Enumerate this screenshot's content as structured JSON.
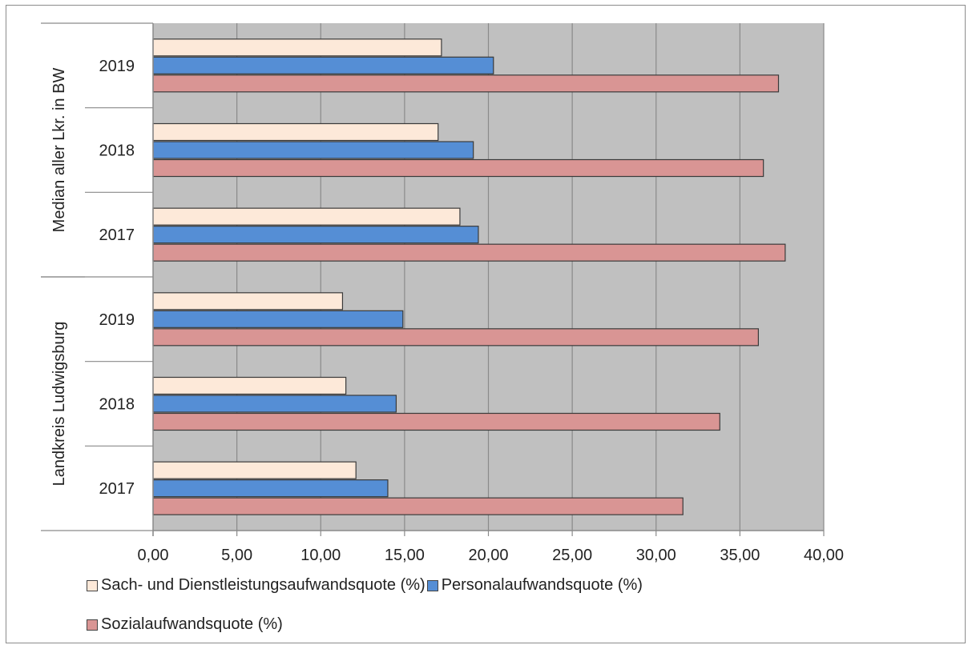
{
  "chart_data": {
    "type": "bar",
    "orientation": "horizontal",
    "groups": [
      {
        "label": "Median aller Lkr. in BW",
        "categories": [
          "2019",
          "2018",
          "2017"
        ],
        "series": [
          {
            "name": "Sach- und Dienstleistungsaufwandsquote (%)",
            "values": [
              17.2,
              17.0,
              18.3
            ]
          },
          {
            "name": "Personalaufwandsquote (%)",
            "values": [
              20.3,
              19.1,
              19.4
            ]
          },
          {
            "name": "Sozialaufwandsquote (%)",
            "values": [
              37.3,
              36.4,
              37.7
            ]
          }
        ]
      },
      {
        "label": "Landkreis Ludwigsburg",
        "categories": [
          "2019",
          "2018",
          "2017"
        ],
        "series": [
          {
            "name": "Sach- und Dienstleistungsaufwandsquote (%)",
            "values": [
              11.3,
              11.5,
              12.1
            ]
          },
          {
            "name": "Personalaufwandsquote (%)",
            "values": [
              14.9,
              14.5,
              14.0
            ]
          },
          {
            "name": "Sozialaufwandsquote (%)",
            "values": [
              36.1,
              33.8,
              31.6
            ]
          }
        ]
      }
    ],
    "xlim": [
      0,
      40
    ],
    "x_ticks": [
      "0,00",
      "5,00",
      "10,00",
      "15,00",
      "20,00",
      "25,00",
      "30,00",
      "35,00",
      "40,00"
    ],
    "grid": true,
    "legend_position": "bottom",
    "colors": {
      "Sach- und Dienstleistungsaufwandsquote (%)": "#fde9d9",
      "Personalaufwandsquote (%)": "#558ed5",
      "Sozialaufwandsquote (%)": "#d99594",
      "plot_background": "#c0c0c0"
    }
  }
}
